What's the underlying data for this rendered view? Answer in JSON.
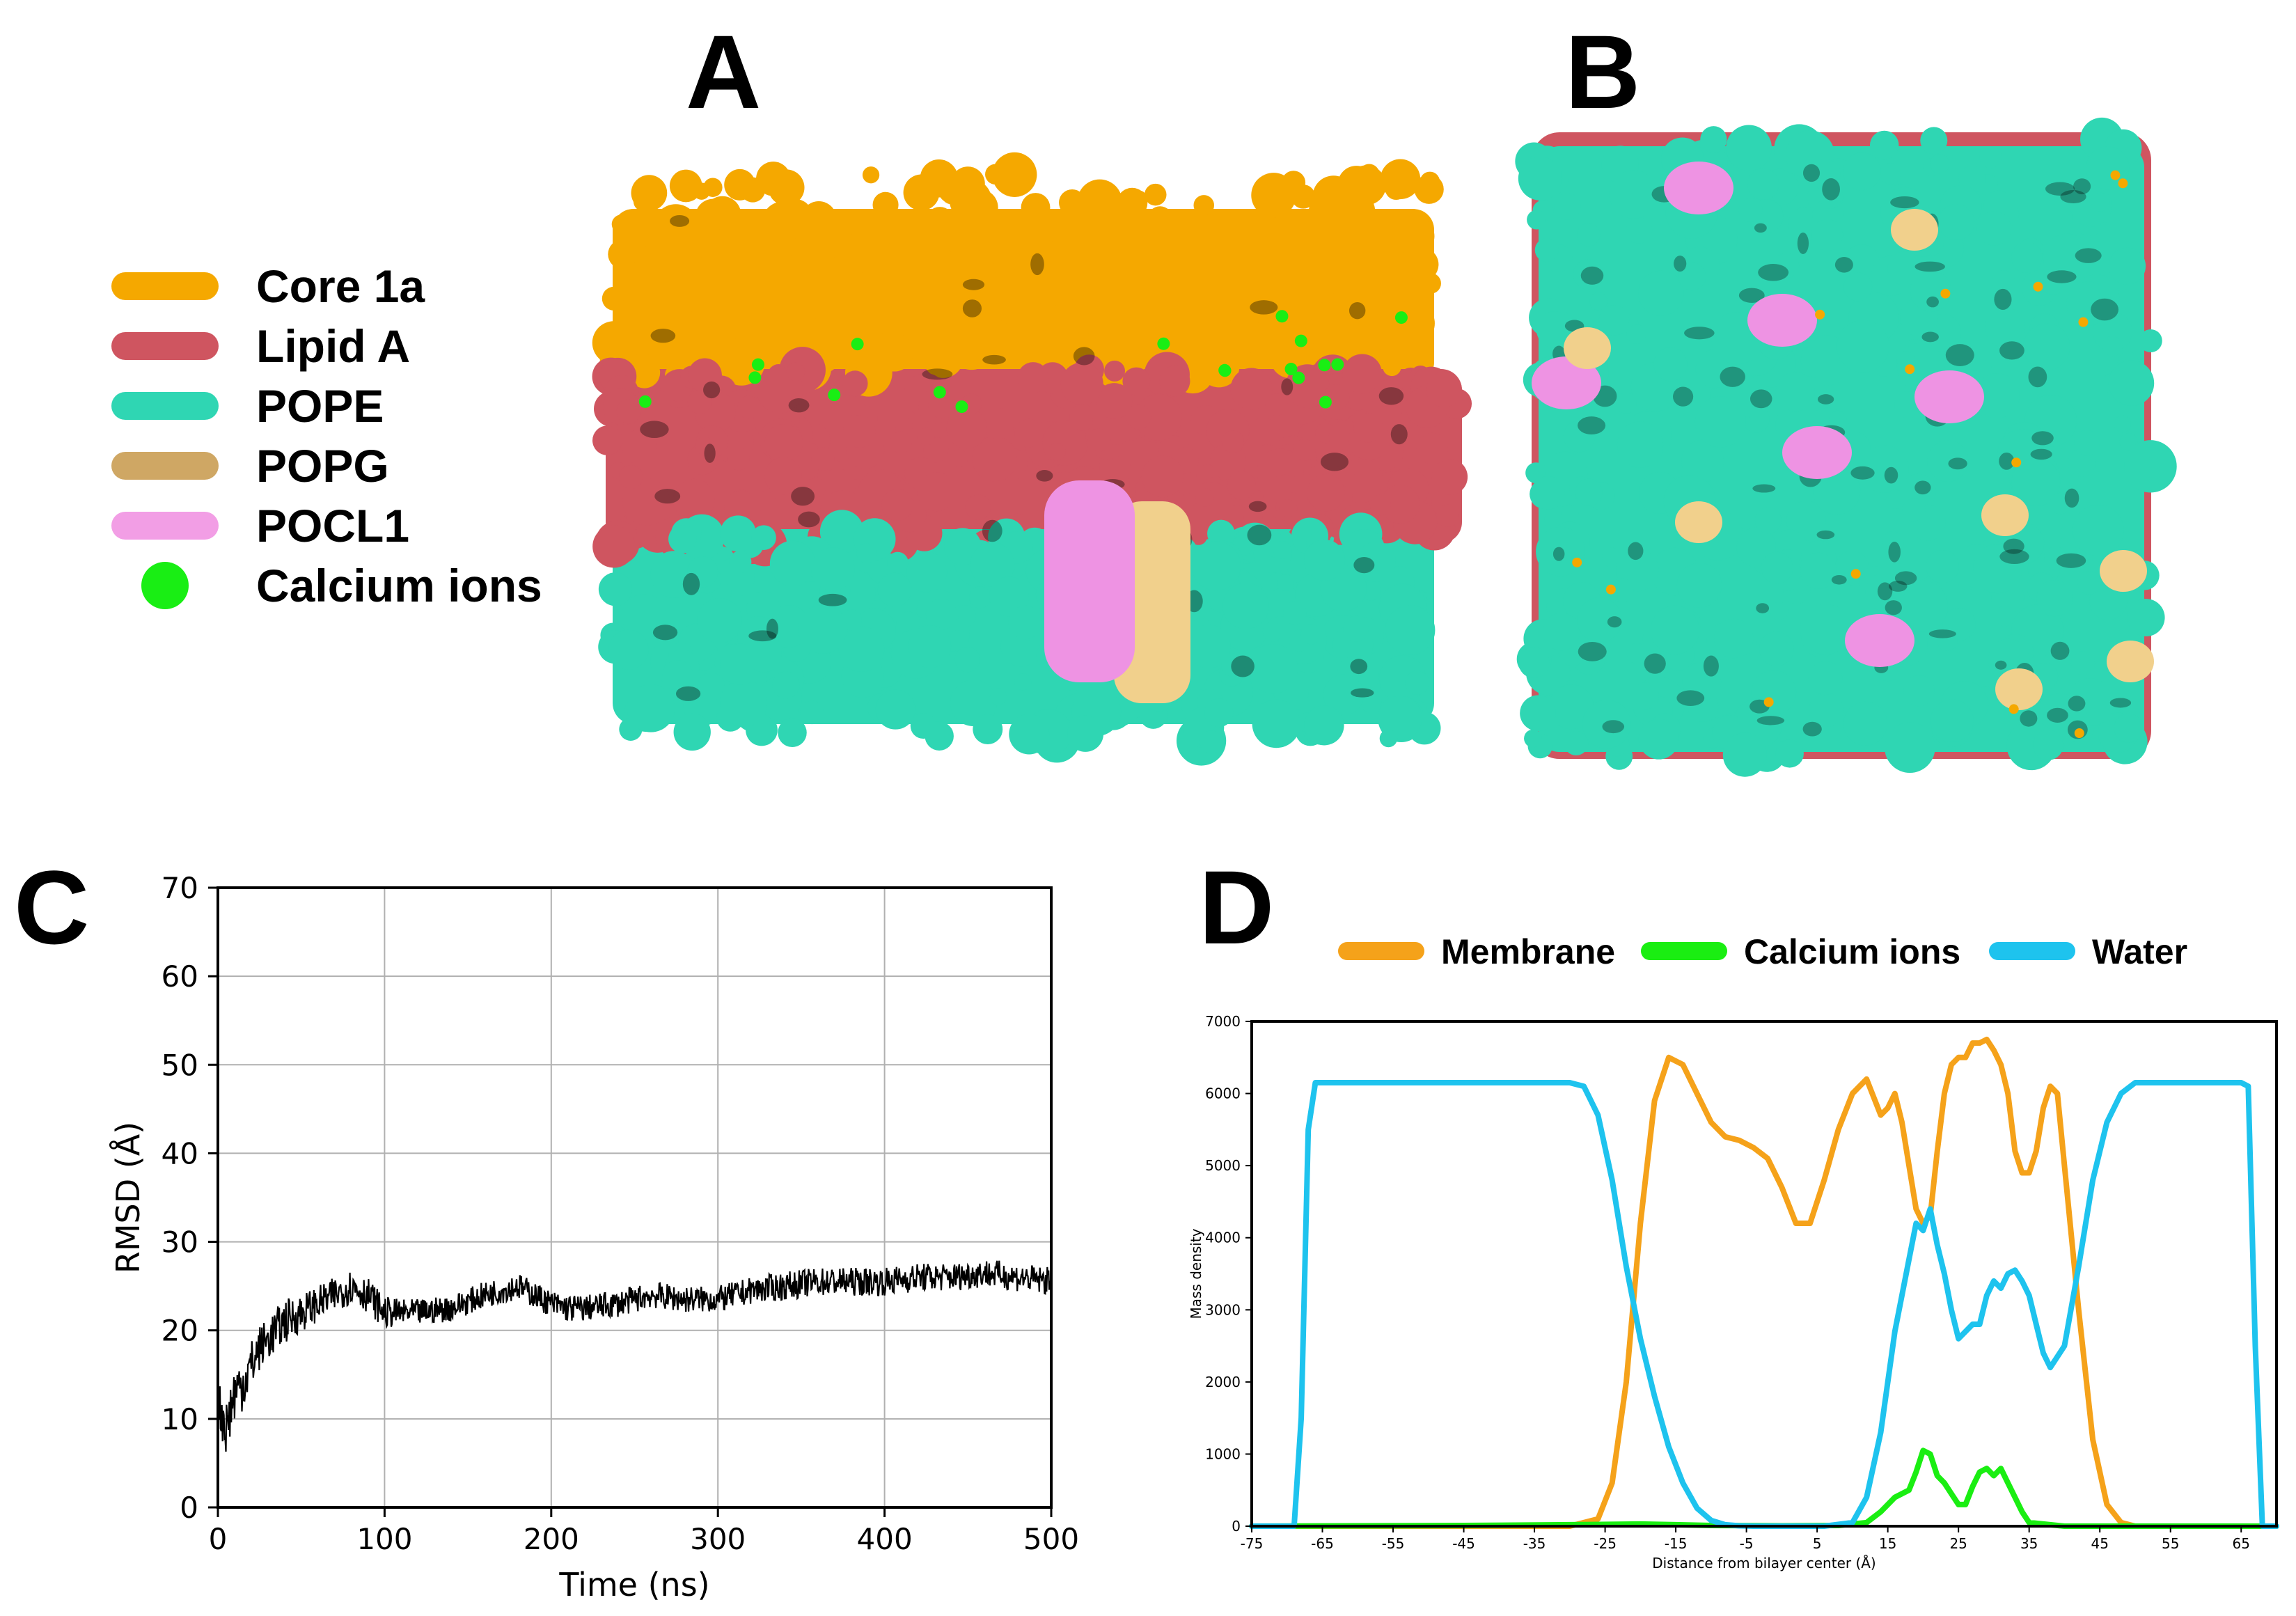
{
  "panels": {
    "a": "A",
    "b": "B",
    "c": "C",
    "d": "D"
  },
  "legend_ab": [
    {
      "label": "Core 1a",
      "color": "#f5a800",
      "shape": "pill"
    },
    {
      "label": "Lipid A",
      "color": "#cf5560",
      "shape": "pill"
    },
    {
      "label": "POPE",
      "color": "#2fd6b3",
      "shape": "pill"
    },
    {
      "label": "POPG",
      "color": "#cfa764",
      "shape": "pill"
    },
    {
      "label": "POCL1",
      "color": "#f29ee5",
      "shape": "pill"
    },
    {
      "label": "Calcium ions",
      "color": "#19ee14",
      "shape": "dot"
    }
  ],
  "render_colors": {
    "core": "#f5a800",
    "lipidA": "#cf5560",
    "pope": "#2fd6b3",
    "popg": "#f1d08c",
    "pocl": "#ee93e3",
    "calcium": "#19ee14"
  },
  "chart_data": [
    {
      "panel": "C",
      "type": "line",
      "xlabel": "Time (ns)",
      "ylabel": "RMSD (Å)",
      "xlim": [
        0,
        500
      ],
      "ylim": [
        0,
        70
      ],
      "xticks": [
        0,
        100,
        200,
        300,
        400,
        500
      ],
      "yticks": [
        0,
        10,
        20,
        30,
        40,
        50,
        60,
        70
      ],
      "grid": true,
      "color": "#000000",
      "x": [
        0,
        5,
        10,
        15,
        20,
        25,
        30,
        40,
        50,
        60,
        70,
        80,
        90,
        100,
        110,
        120,
        140,
        160,
        180,
        200,
        210,
        220,
        240,
        260,
        280,
        300,
        320,
        340,
        360,
        380,
        400,
        420,
        440,
        460,
        480,
        500
      ],
      "values": [
        12,
        9,
        13,
        14,
        16,
        18,
        19,
        21,
        22,
        23,
        24,
        25,
        24,
        22,
        22,
        22,
        22.5,
        24,
        25,
        23,
        22.5,
        22.5,
        23,
        24,
        23.5,
        23.5,
        24.5,
        25,
        25.5,
        25.5,
        25.5,
        26,
        26,
        26.5,
        26,
        25.5
      ],
      "noise": [
        2.5,
        3.5,
        3.5,
        3,
        3,
        2.5,
        2.5,
        2.5,
        2.2,
        2,
        2,
        2,
        2,
        1.8,
        1.5,
        1.5,
        1.5,
        1.5,
        1.5,
        1.5,
        1.6,
        1.5,
        1.5,
        1.5,
        1.5,
        1.5,
        1.5,
        1.6,
        1.6,
        1.6,
        1.6,
        1.6,
        1.6,
        1.6,
        1.6,
        1.6
      ]
    },
    {
      "panel": "D",
      "type": "line",
      "xlabel": "Distance from bilayer center (Å)",
      "ylabel": "Mass density",
      "xlim": [
        -75,
        70
      ],
      "ylim": [
        0,
        7000
      ],
      "xticks": [
        -75,
        -65,
        -55,
        -45,
        -35,
        -25,
        -15,
        -5,
        5,
        15,
        25,
        35,
        45,
        55,
        65
      ],
      "yticks": [
        0,
        1000,
        2000,
        3000,
        4000,
        5000,
        6000,
        7000
      ],
      "grid": false,
      "legend_position": "top",
      "series": [
        {
          "name": "Membrane",
          "color": "#f5a21a",
          "x": [
            -75,
            -30,
            -26,
            -24,
            -22,
            -20,
            -18,
            -16,
            -14,
            -12,
            -10,
            -8,
            -6,
            -4,
            -2,
            0,
            2,
            4,
            6,
            8,
            10,
            12,
            14,
            15,
            16,
            17,
            18,
            19,
            20,
            21,
            22,
            23,
            24,
            25,
            26,
            27,
            28,
            29,
            30,
            31,
            32,
            33,
            34,
            35,
            36,
            37,
            38,
            39,
            40,
            42,
            44,
            46,
            48,
            50,
            55,
            70
          ],
          "values": [
            0,
            0,
            100,
            600,
            2000,
            4200,
            5900,
            6500,
            6400,
            6000,
            5600,
            5400,
            5350,
            5250,
            5100,
            4700,
            4200,
            4200,
            4800,
            5500,
            6000,
            6200,
            5700,
            5800,
            6000,
            5600,
            5000,
            4400,
            4200,
            4300,
            5200,
            6000,
            6400,
            6500,
            6500,
            6700,
            6700,
            6750,
            6600,
            6400,
            6000,
            5200,
            4900,
            4900,
            5200,
            5800,
            6100,
            6000,
            5000,
            3000,
            1200,
            300,
            50,
            0,
            0,
            0
          ]
        },
        {
          "name": "Calcium ions",
          "color": "#1aee12",
          "x": [
            -75,
            -45,
            -30,
            -20,
            -15,
            -10,
            0,
            8,
            12,
            14,
            16,
            18,
            19,
            20,
            21,
            22,
            23,
            24,
            25,
            26,
            27,
            28,
            29,
            30,
            31,
            32,
            33,
            34,
            35,
            40,
            70
          ],
          "values": [
            0,
            10,
            20,
            30,
            20,
            10,
            5,
            10,
            50,
            200,
            400,
            500,
            750,
            1050,
            1000,
            700,
            600,
            450,
            300,
            300,
            550,
            750,
            800,
            700,
            800,
            600,
            400,
            200,
            50,
            0,
            0
          ],
          "line_x": [
            -75,
            -45,
            -30,
            -20,
            -15,
            -10,
            0,
            8,
            12,
            14,
            16,
            18,
            19,
            20,
            21,
            22,
            23,
            24,
            25,
            26,
            27,
            28,
            29,
            30,
            31,
            32,
            33,
            34,
            35,
            40,
            70
          ]
        },
        {
          "name": "Water",
          "color": "#1ec3ee",
          "x": [
            -75,
            -69,
            -68,
            -67,
            -66,
            -60,
            -40,
            -30,
            -28,
            -26,
            -24,
            -22,
            -20,
            -18,
            -16,
            -14,
            -12,
            -10,
            -8,
            -6,
            -4,
            0,
            6,
            10,
            12,
            14,
            16,
            18,
            19,
            20,
            21,
            22,
            23,
            24,
            25,
            26,
            27,
            28,
            29,
            30,
            31,
            32,
            33,
            34,
            35,
            36,
            37,
            38,
            40,
            42,
            44,
            46,
            48,
            50,
            52,
            55,
            60,
            65,
            66,
            67,
            68,
            70
          ],
          "values": [
            0,
            0,
            1500,
            5500,
            6150,
            6150,
            6150,
            6150,
            6100,
            5700,
            4800,
            3600,
            2600,
            1800,
            1100,
            600,
            250,
            80,
            20,
            5,
            0,
            0,
            0,
            50,
            400,
            1300,
            2700,
            3700,
            4200,
            4100,
            4400,
            3900,
            3500,
            3000,
            2600,
            2700,
            2800,
            2800,
            3200,
            3400,
            3300,
            3500,
            3550,
            3400,
            3200,
            2800,
            2400,
            2200,
            2500,
            3600,
            4800,
            5600,
            6000,
            6150,
            6150,
            6150,
            6150,
            6150,
            6100,
            2500,
            0,
            0
          ]
        }
      ]
    }
  ]
}
